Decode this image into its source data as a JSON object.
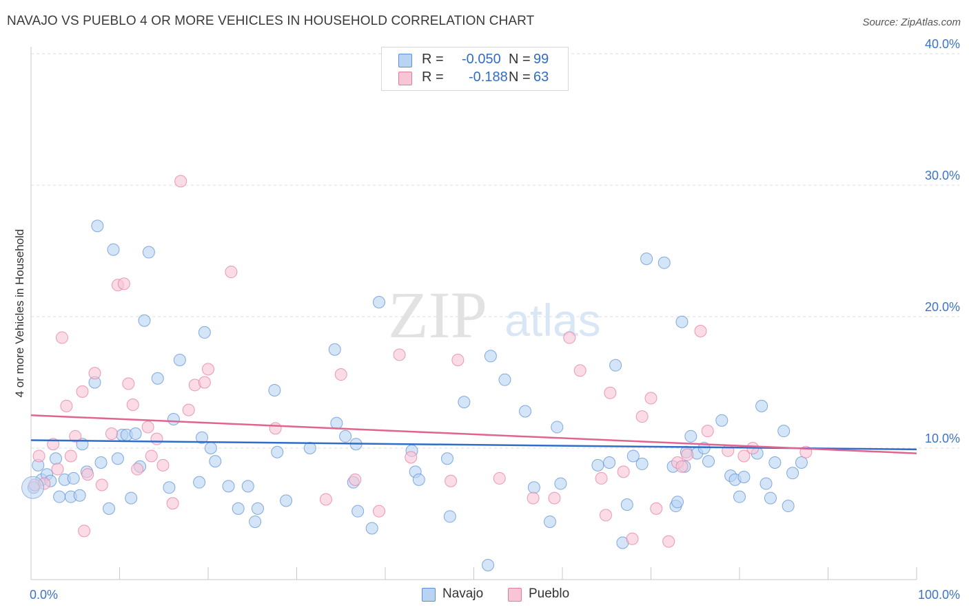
{
  "title": "NAVAJO VS PUEBLO 4 OR MORE VEHICLES IN HOUSEHOLD CORRELATION CHART",
  "source": "Source: ZipAtlas.com",
  "watermark": {
    "zip": "ZIP",
    "atlas": "atlas"
  },
  "legend_top": [
    {
      "label": "R =",
      "r": "-0.050",
      "n_label": "N =",
      "n": "99",
      "color": "#5b8fd6",
      "fill": "#b9d3f3"
    },
    {
      "label": "R =",
      "r": "-0.188",
      "n_label": "N =",
      "n": "63",
      "color": "#e57aa0",
      "fill": "#f8c5d6"
    }
  ],
  "legend_bottom": [
    {
      "label": "Navajo",
      "fill": "#b9d3f3",
      "color": "#5b8fd6"
    },
    {
      "label": "Pueblo",
      "fill": "#f8c5d6",
      "color": "#e57aa0"
    }
  ],
  "chart_data": {
    "type": "scatter",
    "ylabel": "4 or more Vehicles in Household",
    "xlabel": "",
    "xlim": [
      0,
      100
    ],
    "ylim": [
      0,
      40
    ],
    "x_tick_labels": [
      {
        "value": 0,
        "label": "0.0%"
      },
      {
        "value": 100,
        "label": "100.0%"
      }
    ],
    "y_tick_labels": [
      {
        "value": 10,
        "label": "10.0%"
      },
      {
        "value": 20,
        "label": "20.0%"
      },
      {
        "value": 30,
        "label": "30.0%"
      },
      {
        "value": 40,
        "label": "40.0%"
      }
    ],
    "grid": true,
    "series": [
      {
        "name": "Navajo",
        "color": "#5b8fd6",
        "fill": "#b9d3f3",
        "trend": {
          "x": [
            0,
            100
          ],
          "y": [
            10.6,
            9.9
          ],
          "color": "#2f6dc8"
        },
        "points": [
          [
            0.3,
            7.0
          ],
          [
            0.8,
            8.7
          ],
          [
            1.2,
            7.6
          ],
          [
            1.8,
            8.0
          ],
          [
            2.2,
            7.5
          ],
          [
            2.8,
            9.2
          ],
          [
            3.2,
            6.3
          ],
          [
            3.8,
            7.6
          ],
          [
            4.5,
            6.3
          ],
          [
            4.8,
            7.7
          ],
          [
            5.5,
            6.4
          ],
          [
            5.8,
            10.3
          ],
          [
            6.3,
            8.2
          ],
          [
            7.2,
            15.0
          ],
          [
            7.5,
            26.9
          ],
          [
            7.9,
            8.9
          ],
          [
            8.8,
            5.4
          ],
          [
            9.3,
            25.1
          ],
          [
            9.8,
            9.2
          ],
          [
            10.3,
            11.0
          ],
          [
            10.8,
            11.0
          ],
          [
            11.3,
            6.2
          ],
          [
            11.8,
            11.1
          ],
          [
            12.3,
            8.6
          ],
          [
            12.8,
            19.7
          ],
          [
            13.3,
            24.9
          ],
          [
            14.3,
            15.3
          ],
          [
            15.6,
            7.0
          ],
          [
            16.1,
            12.2
          ],
          [
            16.8,
            16.7
          ],
          [
            19.0,
            7.4
          ],
          [
            19.3,
            10.8
          ],
          [
            19.6,
            18.8
          ],
          [
            20.3,
            10.0
          ],
          [
            20.8,
            9.0
          ],
          [
            22.3,
            7.1
          ],
          [
            23.4,
            5.4
          ],
          [
            24.5,
            7.1
          ],
          [
            25.3,
            4.4
          ],
          [
            25.6,
            5.4
          ],
          [
            27.5,
            14.4
          ],
          [
            27.8,
            9.7
          ],
          [
            28.8,
            6.0
          ],
          [
            31.5,
            10.0
          ],
          [
            34.3,
            17.5
          ],
          [
            34.5,
            11.9
          ],
          [
            35.5,
            10.9
          ],
          [
            36.4,
            7.4
          ],
          [
            36.7,
            10.3
          ],
          [
            36.9,
            5.2
          ],
          [
            38.5,
            3.9
          ],
          [
            39.3,
            21.1
          ],
          [
            43.0,
            9.8
          ],
          [
            43.4,
            8.2
          ],
          [
            43.8,
            7.6
          ],
          [
            47.0,
            9.2
          ],
          [
            47.3,
            4.8
          ],
          [
            48.9,
            13.5
          ],
          [
            51.6,
            1.1
          ],
          [
            51.9,
            17.0
          ],
          [
            53.5,
            15.2
          ],
          [
            55.8,
            12.8
          ],
          [
            56.8,
            7.0
          ],
          [
            58.6,
            4.4
          ],
          [
            59.4,
            11.6
          ],
          [
            59.8,
            7.3
          ],
          [
            64.0,
            8.7
          ],
          [
            65.3,
            8.9
          ],
          [
            66.0,
            16.3
          ],
          [
            66.8,
            2.8
          ],
          [
            67.3,
            5.7
          ],
          [
            68.0,
            9.4
          ],
          [
            69.0,
            8.8
          ],
          [
            69.5,
            24.4
          ],
          [
            71.5,
            24.1
          ],
          [
            72.5,
            8.6
          ],
          [
            72.8,
            5.6
          ],
          [
            73.0,
            5.9
          ],
          [
            73.5,
            19.6
          ],
          [
            74.0,
            9.7
          ],
          [
            74.5,
            10.9
          ],
          [
            75.2,
            9.6
          ],
          [
            76.0,
            10.0
          ],
          [
            76.5,
            9.0
          ],
          [
            78.0,
            12.1
          ],
          [
            79.0,
            7.9
          ],
          [
            79.5,
            7.6
          ],
          [
            80.0,
            6.3
          ],
          [
            80.5,
            7.8
          ],
          [
            82.0,
            9.6
          ],
          [
            82.5,
            13.2
          ],
          [
            83.0,
            7.3
          ],
          [
            83.5,
            6.2
          ],
          [
            84.0,
            8.9
          ],
          [
            85.0,
            11.3
          ],
          [
            85.5,
            5.6
          ],
          [
            86.0,
            8.1
          ],
          [
            87.0,
            8.9
          ],
          [
            73.8,
            8.6
          ]
        ]
      },
      {
        "name": "Pueblo",
        "color": "#e57aa0",
        "fill": "#f8c5d6",
        "trend": {
          "x": [
            0,
            100
          ],
          "y": [
            12.5,
            9.6
          ],
          "color": "#e0648f"
        },
        "points": [
          [
            0.4,
            7.2
          ],
          [
            0.9,
            9.4
          ],
          [
            1.5,
            7.3
          ],
          [
            2.5,
            10.3
          ],
          [
            3.0,
            8.4
          ],
          [
            3.5,
            18.4
          ],
          [
            4.0,
            13.2
          ],
          [
            4.5,
            9.4
          ],
          [
            5.0,
            10.9
          ],
          [
            5.8,
            14.3
          ],
          [
            6.0,
            3.7
          ],
          [
            6.4,
            8.0
          ],
          [
            7.2,
            15.7
          ],
          [
            8.0,
            7.2
          ],
          [
            9.1,
            11.1
          ],
          [
            9.8,
            22.4
          ],
          [
            10.5,
            22.5
          ],
          [
            11.0,
            14.9
          ],
          [
            11.5,
            13.3
          ],
          [
            12.0,
            8.4
          ],
          [
            13.2,
            11.6
          ],
          [
            13.6,
            9.4
          ],
          [
            14.2,
            10.7
          ],
          [
            14.9,
            8.7
          ],
          [
            16.0,
            5.8
          ],
          [
            16.9,
            30.3
          ],
          [
            17.8,
            12.9
          ],
          [
            18.5,
            14.8
          ],
          [
            19.6,
            15.0
          ],
          [
            20.0,
            16.0
          ],
          [
            22.6,
            23.4
          ],
          [
            27.6,
            11.5
          ],
          [
            33.3,
            6.1
          ],
          [
            35.0,
            15.6
          ],
          [
            36.6,
            7.6
          ],
          [
            39.3,
            5.2
          ],
          [
            41.6,
            17.1
          ],
          [
            42.9,
            9.3
          ],
          [
            47.4,
            7.5
          ],
          [
            48.2,
            16.7
          ],
          [
            52.9,
            7.7
          ],
          [
            56.7,
            6.2
          ],
          [
            59.1,
            6.2
          ],
          [
            60.8,
            18.4
          ],
          [
            62.0,
            15.9
          ],
          [
            64.4,
            7.7
          ],
          [
            64.9,
            4.9
          ],
          [
            65.4,
            14.2
          ],
          [
            66.9,
            8.2
          ],
          [
            67.9,
            3.1
          ],
          [
            69.0,
            12.4
          ],
          [
            70.0,
            13.8
          ],
          [
            70.6,
            5.4
          ],
          [
            72.0,
            2.9
          ],
          [
            73.0,
            8.9
          ],
          [
            73.5,
            8.6
          ],
          [
            74.1,
            9.5
          ],
          [
            75.6,
            18.9
          ],
          [
            76.4,
            11.3
          ],
          [
            78.7,
            9.8
          ],
          [
            80.5,
            9.4
          ],
          [
            81.5,
            10.0
          ],
          [
            87.5,
            9.7
          ]
        ]
      }
    ]
  }
}
